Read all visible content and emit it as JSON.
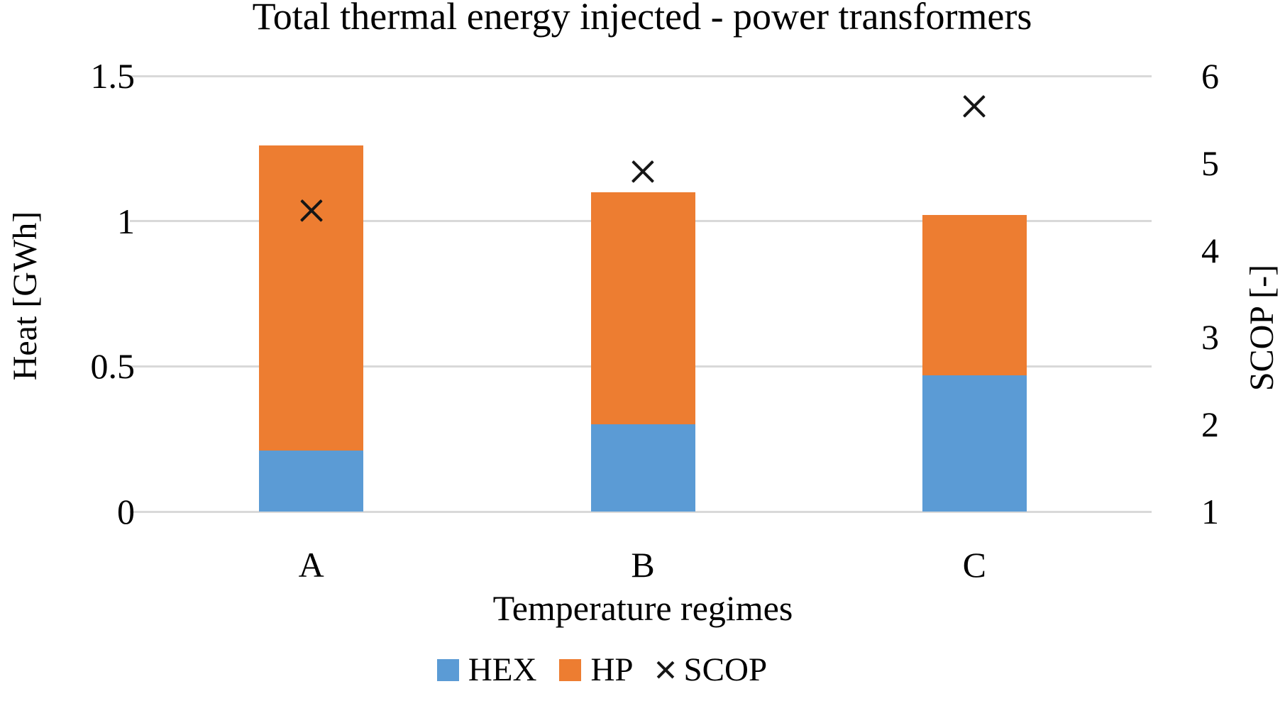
{
  "chart_data": {
    "type": "bar",
    "subtype": "stacked-with-scatter-overlay",
    "title": "Total thermal energy injected - power transformers",
    "xlabel": "Temperature regimes",
    "ylabel_left": "Heat [GWh]",
    "ylabel_right": "SCOP [-]",
    "categories": [
      "A",
      "B",
      "C"
    ],
    "series": [
      {
        "name": "HEX",
        "type": "bar",
        "axis": "left",
        "color": "#5B9BD5",
        "values": [
          0.21,
          0.3,
          0.47
        ]
      },
      {
        "name": "HP",
        "type": "bar",
        "axis": "left",
        "color": "#ED7D31",
        "values": [
          1.05,
          0.8,
          0.55
        ]
      },
      {
        "name": "SCOP",
        "type": "scatter",
        "axis": "right",
        "color": "#161616",
        "marker": "x",
        "values": [
          4.45,
          4.9,
          5.65
        ]
      }
    ],
    "stacked_totals": [
      1.26,
      1.1,
      1.02
    ],
    "ylim_left": [
      0,
      1.5
    ],
    "ylim_right": [
      1,
      6
    ],
    "yticks_left": [
      0,
      0.5,
      1,
      1.5
    ],
    "yticks_right": [
      1,
      2,
      3,
      4,
      5,
      6
    ],
    "grid": true,
    "gridline_color": "#d9d9d9",
    "legend_position": "bottom"
  }
}
